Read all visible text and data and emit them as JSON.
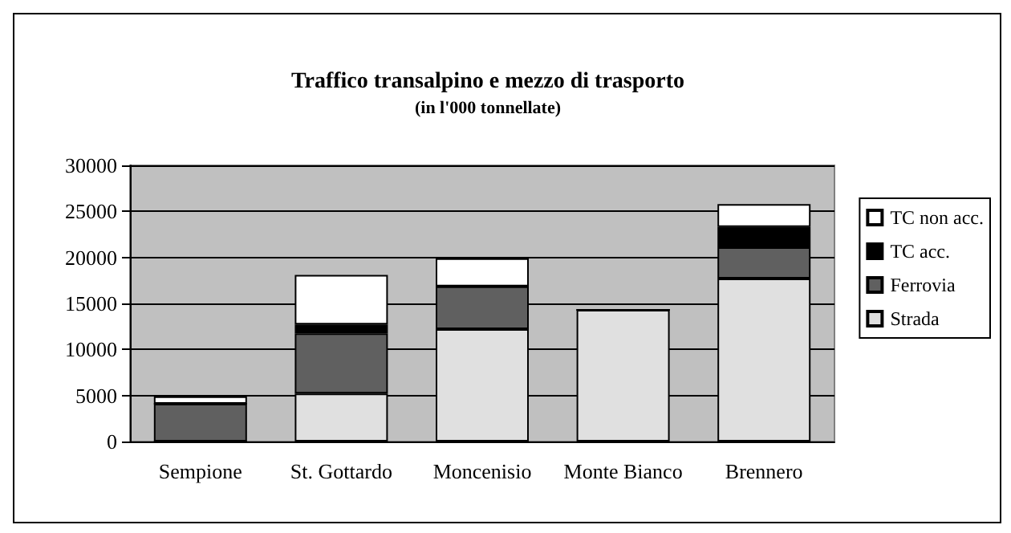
{
  "chart_data": {
    "type": "bar",
    "title": "Traffico transalpino e mezzo di trasporto",
    "subtitle": "(in l'000 tonnellate)",
    "categories": [
      "Sempione",
      "St. Gottardo",
      "Moncenisio",
      "Monte Bianco",
      "Brennero"
    ],
    "series": [
      {
        "name": "Strada",
        "color": "#e0e0e0",
        "values": [
          0,
          5200,
          12200,
          14300,
          17700
        ]
      },
      {
        "name": "Ferrovia",
        "color": "#606060",
        "values": [
          4100,
          6550,
          4650,
          0,
          3400
        ]
      },
      {
        "name": "TC acc.",
        "color": "#000000",
        "values": [
          0,
          950,
          0,
          0,
          2200
        ]
      },
      {
        "name": "TC non acc.",
        "color": "#ffffff",
        "values": [
          800,
          5400,
          3050,
          0,
          2500
        ]
      }
    ],
    "stacked": true,
    "ylim": [
      0,
      30000
    ],
    "yticks": [
      0,
      5000,
      10000,
      15000,
      20000,
      25000,
      30000
    ],
    "grid": "y",
    "legend": "right"
  }
}
